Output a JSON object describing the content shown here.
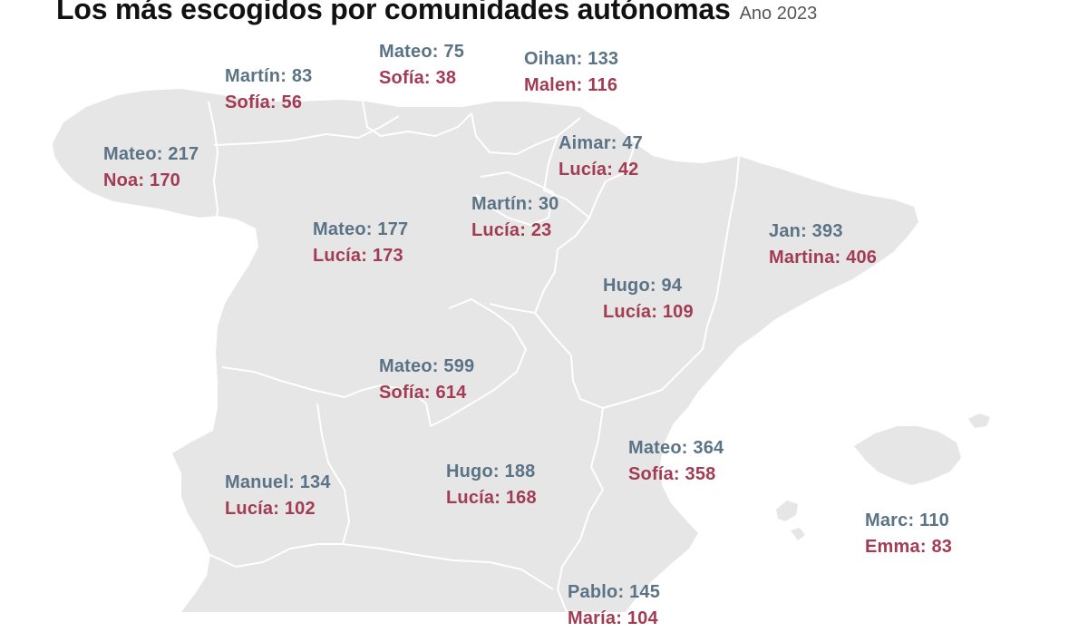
{
  "title": "Los más escogidos por comunidades autónomas",
  "subtitle": "Ano 2023",
  "colors": {
    "boy": "#5b7386",
    "girl": "#a23c55",
    "land": "#e6e6e6",
    "border": "#ffffff"
  },
  "regions": [
    {
      "id": "galicia",
      "boy": "Mateo: 217",
      "girl": "Noa: 170"
    },
    {
      "id": "asturias",
      "boy": "Martín: 83",
      "girl": "Sofía: 56"
    },
    {
      "id": "cantabria",
      "boy": "Mateo: 75",
      "girl": "Sofía: 38"
    },
    {
      "id": "pais-vasco",
      "boy": "Oihan: 133",
      "girl": "Malen: 116"
    },
    {
      "id": "navarra",
      "boy": "Aimar: 47",
      "girl": "Lucía: 42"
    },
    {
      "id": "la-rioja",
      "boy": "Martín: 30",
      "girl": "Lucía: 23"
    },
    {
      "id": "castilla-y-leon",
      "boy": "Mateo: 177",
      "girl": "Lucía: 173"
    },
    {
      "id": "cataluna",
      "boy": "Jan: 393",
      "girl": "Martina: 406"
    },
    {
      "id": "aragon",
      "boy": "Hugo: 94",
      "girl": "Lucía: 109"
    },
    {
      "id": "madrid",
      "boy": "Mateo: 599",
      "girl": "Sofía: 614"
    },
    {
      "id": "valencia",
      "boy": "Mateo: 364",
      "girl": "Sofía: 358"
    },
    {
      "id": "extremadura",
      "boy": "Manuel: 134",
      "girl": "Lucía: 102"
    },
    {
      "id": "castilla-la-mancha",
      "boy": "Hugo: 188",
      "girl": "Lucía: 168"
    },
    {
      "id": "baleares",
      "boy": "Marc: 110",
      "girl": "Emma: 83"
    },
    {
      "id": "murcia",
      "boy": "Pablo: 145",
      "girl": "María: 104"
    }
  ]
}
